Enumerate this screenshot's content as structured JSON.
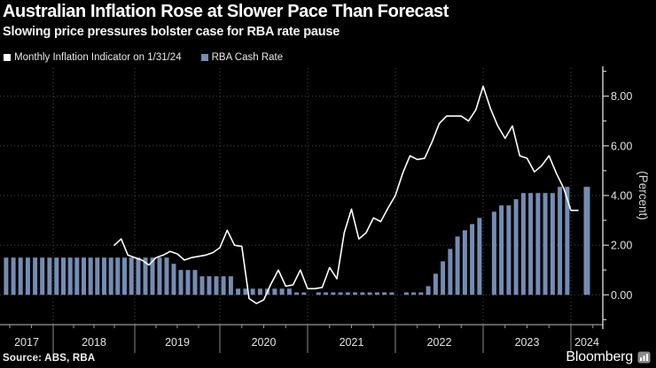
{
  "header": {
    "title": "Australian Inflation Rose at Slower Pace Than Forecast",
    "subtitle": "Slowing price pressures bolster case for RBA rate pause"
  },
  "legend": [
    {
      "label": "Monthly Inflation Indicator on 1/31/24",
      "color": "#ffffff"
    },
    {
      "label": "RBA Cash Rate",
      "color": "#758cb3"
    }
  ],
  "footer": {
    "source": "Source: ABS, RBA",
    "brand": "Bloomberg"
  },
  "chart_data": {
    "type": "line",
    "title": "Australian Inflation Rose at Slower Pace Than Forecast",
    "subtitle": "Slowing price pressures bolster case for RBA rate pause",
    "xlabel": "",
    "ylabel": "(Percent)",
    "ylim": [
      -1.2,
      9.2
    ],
    "y_tick_values": [
      0,
      2,
      4,
      6,
      8
    ],
    "y_tick_labels": [
      "0.00",
      "2.00",
      "4.00",
      "6.00",
      "8.00"
    ],
    "x_years": [
      "2017",
      "2018",
      "2019",
      "2020",
      "2021",
      "2022",
      "2023",
      "2024"
    ],
    "grid": "dotted",
    "legend_position": "top-left",
    "background": "#000000",
    "series": [
      {
        "name": "Monthly Inflation Indicator on 1/31/24",
        "type": "line",
        "color": "#ffffff",
        "start_month": "2018-09",
        "unit": "percent",
        "monthly_values": [
          2.0,
          2.25,
          1.6,
          1.5,
          1.4,
          1.2,
          1.5,
          1.6,
          1.75,
          1.65,
          1.4,
          1.5,
          1.55,
          1.6,
          1.7,
          1.9,
          2.6,
          2.0,
          1.95,
          -0.15,
          -0.35,
          -0.2,
          0.45,
          1.0,
          0.35,
          0.4,
          1.0,
          0.25,
          0.25,
          0.3,
          1.1,
          0.65,
          2.5,
          3.45,
          2.25,
          2.5,
          3.1,
          2.95,
          3.5,
          4.0,
          4.9,
          5.6,
          5.45,
          5.5,
          6.15,
          6.9,
          7.2,
          7.2,
          7.2,
          7.0,
          7.45,
          8.4,
          7.5,
          6.8,
          6.3,
          6.8,
          5.6,
          5.5,
          4.95,
          5.2,
          5.6,
          4.9,
          4.3,
          3.4
        ]
      },
      {
        "name": "RBA Cash Rate",
        "type": "bar",
        "color": "#758cb3",
        "start_month": "2017-06",
        "unit": "percent",
        "monthly_values": [
          1.5,
          1.5,
          1.5,
          1.5,
          1.5,
          1.5,
          1.5,
          1.5,
          1.5,
          1.5,
          1.5,
          1.5,
          1.5,
          1.5,
          1.5,
          1.5,
          1.5,
          1.5,
          1.5,
          1.5,
          1.5,
          1.5,
          1.5,
          1.5,
          1.25,
          1.0,
          1.0,
          1.0,
          0.75,
          0.75,
          0.75,
          0.75,
          0.75,
          0.25,
          0.25,
          0.25,
          0.25,
          0.25,
          0.25,
          0.25,
          0.25,
          0.1,
          0.1,
          null,
          0.1,
          0.1,
          0.1,
          0.1,
          0.1,
          0.1,
          0.1,
          0.1,
          0.1,
          0.1,
          0.1,
          null,
          0.1,
          0.1,
          0.1,
          0.35,
          0.85,
          1.35,
          1.85,
          2.35,
          2.6,
          2.85,
          3.1,
          null,
          3.35,
          3.6,
          3.6,
          3.85,
          4.1,
          4.1,
          4.1,
          4.1,
          4.1,
          4.35,
          4.35,
          4.35
        ]
      }
    ]
  }
}
